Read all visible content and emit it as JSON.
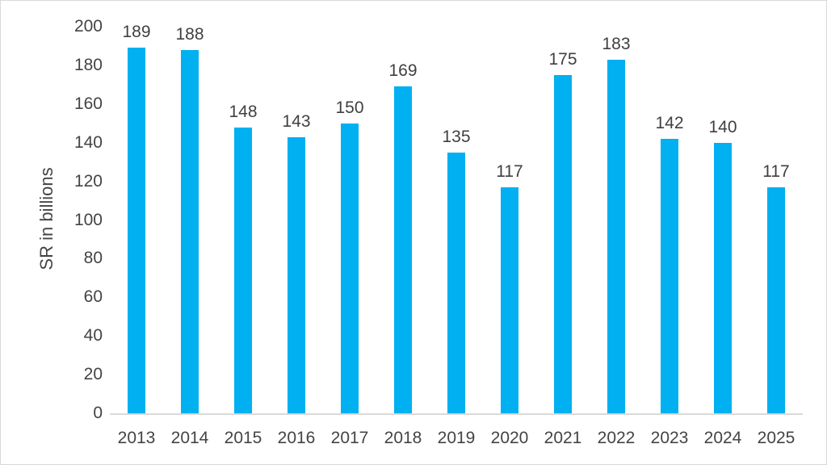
{
  "chart_data": {
    "type": "bar",
    "categories": [
      "2013",
      "2014",
      "2015",
      "2016",
      "2017",
      "2018",
      "2019",
      "2020",
      "2021",
      "2022",
      "2023",
      "2024",
      "2025"
    ],
    "values": [
      189,
      188,
      148,
      143,
      150,
      169,
      135,
      117,
      175,
      183,
      142,
      140,
      117
    ],
    "data_labels": [
      "189",
      "188",
      "148",
      "143",
      "150",
      "169",
      "135",
      "117",
      "175",
      "183",
      "142",
      "140",
      "117"
    ],
    "title": "",
    "xlabel": "",
    "ylabel": "SR in billions",
    "ylim": [
      0,
      200
    ],
    "ytick_step": 20,
    "ytick_labels": [
      "0",
      "20",
      "40",
      "60",
      "80",
      "100",
      "120",
      "140",
      "160",
      "180",
      "200"
    ],
    "grid": false,
    "legend": false,
    "colors": {
      "bar": "#00B0F0",
      "axis_line": "#d9d9d9",
      "label_text": "#404040",
      "tick_text": "#444444",
      "border": "#d9d9d9",
      "background": "#ffffff"
    }
  }
}
